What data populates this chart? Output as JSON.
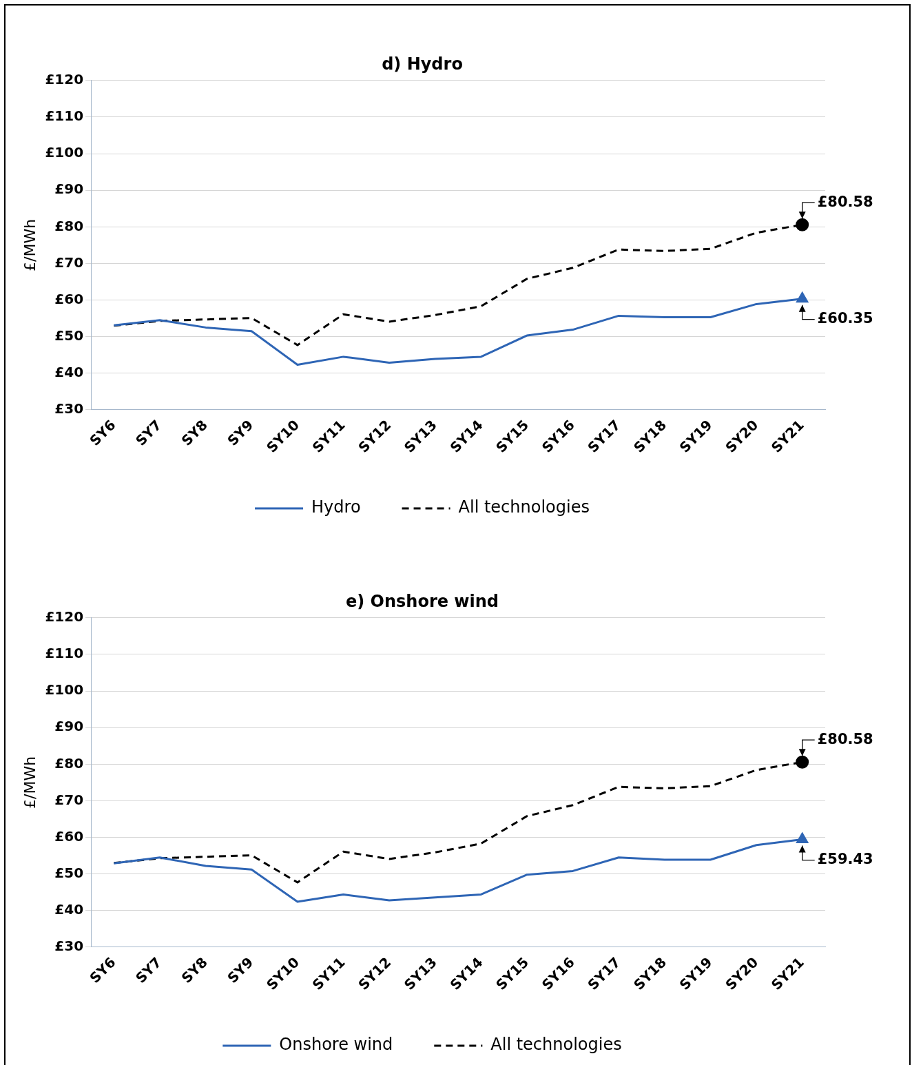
{
  "chart_data": [
    {
      "type": "line",
      "title": "d) Hydro",
      "ylabel": "£/MWh",
      "categories": [
        "SY6",
        "SY7",
        "SY8",
        "SY9",
        "SY10",
        "SY11",
        "SY12",
        "SY13",
        "SY14",
        "SY15",
        "SY16",
        "SY17",
        "SY18",
        "SY19",
        "SY20",
        "SY21"
      ],
      "series": [
        {
          "name": "Hydro",
          "color": "#2e65b5",
          "line_style": "solid",
          "values": [
            53.1,
            54.5,
            52.5,
            51.5,
            42.3,
            44.5,
            42.9,
            43.9,
            44.5,
            50.3,
            51.9,
            55.7,
            55.3,
            55.3,
            58.9,
            60.35
          ]
        },
        {
          "name": "All technologies",
          "color": "#000000",
          "line_style": "dashed",
          "values": [
            53.0,
            54.3,
            54.7,
            55.1,
            47.7,
            56.1,
            54.1,
            55.9,
            58.3,
            65.8,
            68.8,
            73.8,
            73.4,
            74.0,
            78.4,
            80.58
          ]
        }
      ],
      "ylim": [
        30,
        120
      ],
      "yticks": [
        {
          "value": 30,
          "label": "£30"
        },
        {
          "value": 40,
          "label": "£40"
        },
        {
          "value": 50,
          "label": "£50"
        },
        {
          "value": 60,
          "label": "£60"
        },
        {
          "value": 70,
          "label": "£70"
        },
        {
          "value": 80,
          "label": "£80"
        },
        {
          "value": 90,
          "label": "£90"
        },
        {
          "value": 100,
          "label": "£100"
        },
        {
          "value": 110,
          "label": "£110"
        },
        {
          "value": 120,
          "label": "£120"
        }
      ],
      "grid": "y",
      "legend": "bottom",
      "annotations": [
        {
          "text": "£80.58",
          "x": "SY21",
          "y": 80.58
        },
        {
          "text": "£60.35",
          "x": "SY21",
          "y": 60.35
        }
      ]
    },
    {
      "type": "line",
      "title": "e) Onshore wind",
      "ylabel": "£/MWh",
      "categories": [
        "SY6",
        "SY7",
        "SY8",
        "SY9",
        "SY10",
        "SY11",
        "SY12",
        "SY13",
        "SY14",
        "SY15",
        "SY16",
        "SY17",
        "SY18",
        "SY19",
        "SY20",
        "SY21"
      ],
      "series": [
        {
          "name": "Onshore wind",
          "color": "#2e65b5",
          "line_style": "solid",
          "values": [
            52.9,
            54.5,
            52.2,
            51.2,
            42.4,
            44.4,
            42.8,
            43.6,
            44.4,
            49.8,
            50.8,
            54.5,
            53.9,
            53.9,
            57.9,
            59.43
          ]
        },
        {
          "name": "All technologies",
          "color": "#000000",
          "line_style": "dashed",
          "values": [
            53.0,
            54.3,
            54.7,
            55.1,
            47.7,
            56.1,
            54.1,
            55.9,
            58.3,
            65.8,
            68.8,
            73.8,
            73.4,
            74.0,
            78.4,
            80.58
          ]
        }
      ],
      "ylim": [
        30,
        120
      ],
      "yticks": [
        {
          "value": 30,
          "label": "£30"
        },
        {
          "value": 40,
          "label": "£40"
        },
        {
          "value": 50,
          "label": "£50"
        },
        {
          "value": 60,
          "label": "£60"
        },
        {
          "value": 70,
          "label": "£70"
        },
        {
          "value": 80,
          "label": "£80"
        },
        {
          "value": 90,
          "label": "£90"
        },
        {
          "value": 100,
          "label": "£100"
        },
        {
          "value": 110,
          "label": "£110"
        },
        {
          "value": 120,
          "label": "£120"
        }
      ],
      "grid": "y",
      "legend": "bottom",
      "annotations": [
        {
          "text": "£80.58",
          "x": "SY21",
          "y": 80.58
        },
        {
          "text": "£59.43",
          "x": "SY21",
          "y": 59.43
        }
      ]
    }
  ]
}
